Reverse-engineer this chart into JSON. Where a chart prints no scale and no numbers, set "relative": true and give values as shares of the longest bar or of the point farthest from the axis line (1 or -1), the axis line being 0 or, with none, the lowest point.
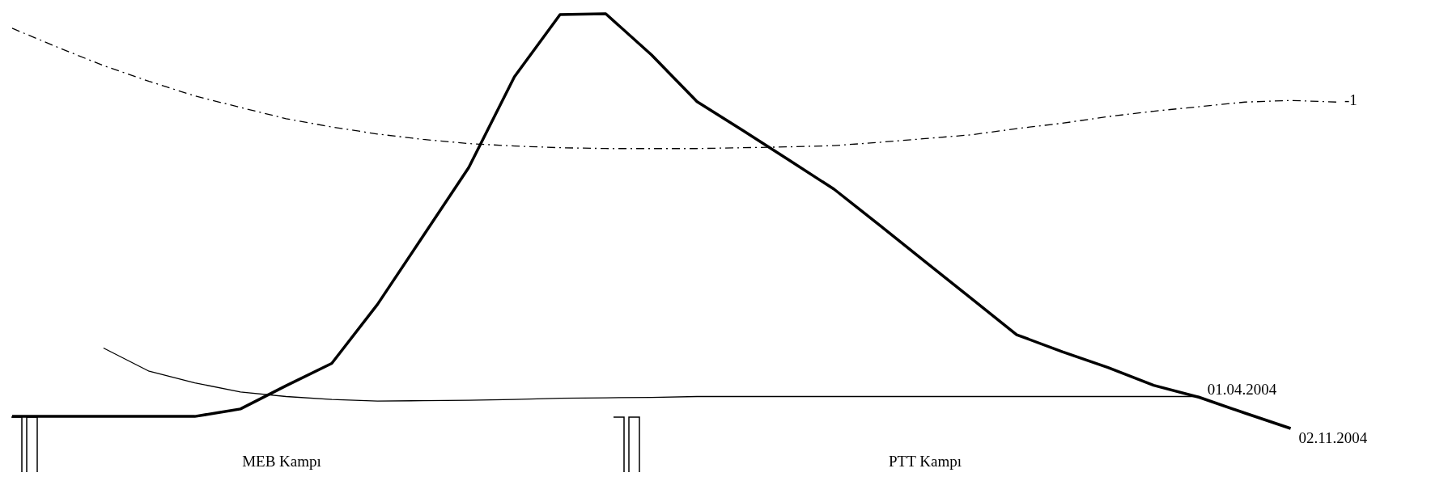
{
  "chart_data": {
    "type": "line",
    "relative": true,
    "categories": [
      null,
      null,
      null,
      null,
      null,
      null,
      null,
      null,
      null,
      null,
      null,
      null,
      null,
      null,
      null,
      null,
      null,
      null,
      null,
      null,
      null,
      null,
      null,
      null,
      null,
      null,
      null,
      null,
      null,
      null
    ],
    "series": [
      {
        "name": "02.11.2004",
        "color": "#000000",
        "line_style": "solid",
        "values": [
          0.029,
          0.029,
          0.029,
          0.029,
          0.029,
          0.047,
          0.103,
          0.157,
          0.299,
          0.464,
          0.629,
          0.848,
          0.998,
          1.0,
          0.901,
          0.788,
          0.719,
          0.648,
          0.577,
          0.49,
          0.402,
          0.314,
          0.226,
          0.185,
          0.147,
          0.104,
          0.075,
          0.037,
          0,
          null
        ]
      },
      {
        "name": "01.04.2004",
        "color": "#000000",
        "line_style": "solid",
        "values": [
          null,
          null,
          0.194,
          0.138,
          0.11,
          0.088,
          0.077,
          0.07,
          0.066,
          0.067,
          0.068,
          0.07,
          0.073,
          0.074,
          0.075,
          0.077,
          0.077,
          0.077,
          0.077,
          0.077,
          0.077,
          0.077,
          0.077,
          0.077,
          0.077,
          0.077,
          0.077,
          null,
          null,
          null
        ]
      },
      {
        "name": "-1",
        "color": "#000000",
        "line_style": "dashed",
        "values": [
          0.965,
          0.919,
          0.875,
          0.837,
          0.802,
          0.774,
          0.747,
          0.727,
          0.71,
          0.697,
          0.687,
          0.681,
          0.677,
          0.675,
          0.675,
          0.675,
          0.677,
          0.679,
          0.682,
          0.69,
          0.699,
          0.708,
          0.723,
          0.736,
          0.752,
          0.765,
          0.776,
          0.787,
          0.791,
          0.787
        ]
      }
    ],
    "annotations": [
      "MEB Kampı",
      "PTT Kampı"
    ]
  }
}
